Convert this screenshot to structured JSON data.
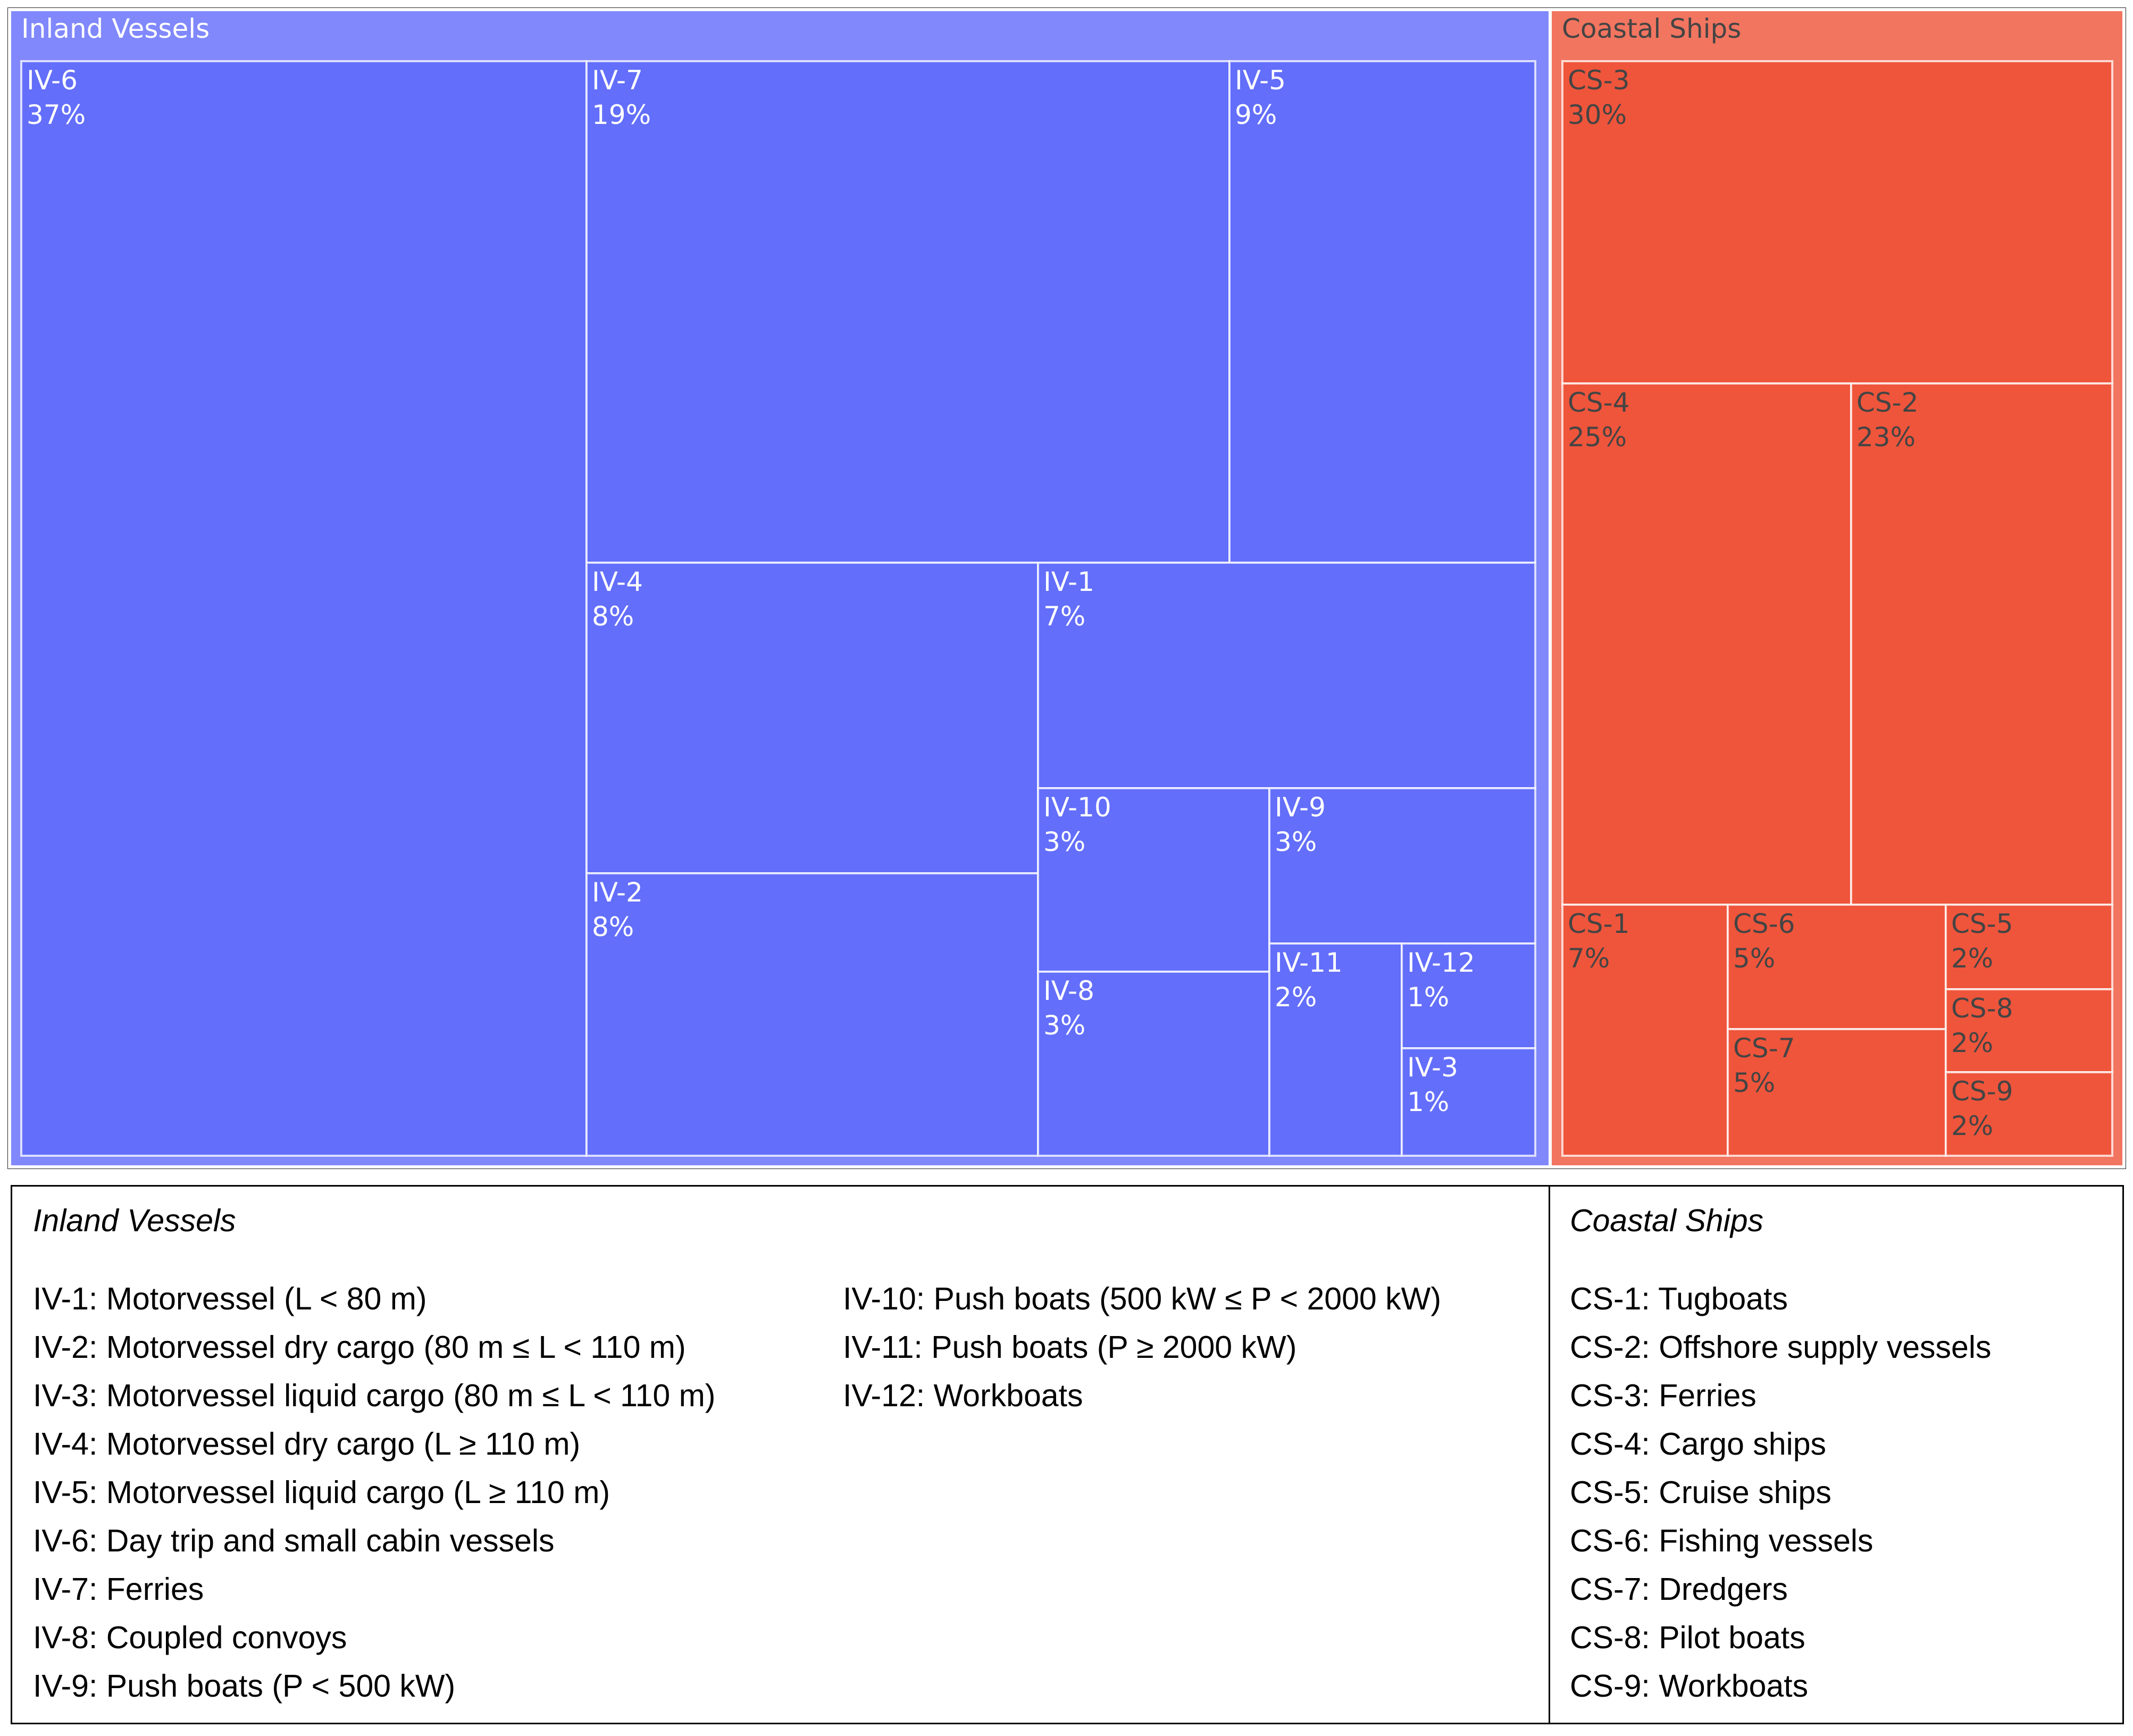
{
  "chart_data": {
    "type": "treemap",
    "groups": [
      {
        "name": "Inland Vessels",
        "color": "#636efa",
        "header_color": "#8088fc",
        "text_color": "#ffffff",
        "items": [
          {
            "id": "IV-6",
            "percent": "37%"
          },
          {
            "id": "IV-7",
            "percent": "19%"
          },
          {
            "id": "IV-5",
            "percent": "9%"
          },
          {
            "id": "IV-4",
            "percent": "8%"
          },
          {
            "id": "IV-2",
            "percent": "8%"
          },
          {
            "id": "IV-1",
            "percent": "7%"
          },
          {
            "id": "IV-10",
            "percent": "3%"
          },
          {
            "id": "IV-9",
            "percent": "3%"
          },
          {
            "id": "IV-8",
            "percent": "3%"
          },
          {
            "id": "IV-11",
            "percent": "2%"
          },
          {
            "id": "IV-12",
            "percent": "1%"
          },
          {
            "id": "IV-3",
            "percent": "1%"
          }
        ]
      },
      {
        "name": "Coastal Ships",
        "color": "#ef553b",
        "header_color": "#f27560",
        "text_color": "#444444",
        "items": [
          {
            "id": "CS-3",
            "percent": "30%"
          },
          {
            "id": "CS-4",
            "percent": "25%"
          },
          {
            "id": "CS-2",
            "percent": "23%"
          },
          {
            "id": "CS-1",
            "percent": "7%"
          },
          {
            "id": "CS-6",
            "percent": "5%"
          },
          {
            "id": "CS-7",
            "percent": "5%"
          },
          {
            "id": "CS-5",
            "percent": "2%"
          },
          {
            "id": "CS-8",
            "percent": "2%"
          },
          {
            "id": "CS-9",
            "percent": "2%"
          }
        ]
      }
    ]
  },
  "legend": {
    "inland": {
      "heading": "Inland Vessels",
      "col1": [
        "IV-1: Motorvessel (L < 80 m)",
        "IV-2: Motorvessel dry cargo (80 m ≤ L < 110 m)",
        "IV-3: Motorvessel liquid cargo (80 m ≤ L < 110 m)",
        "IV-4: Motorvessel dry cargo (L ≥ 110 m)",
        "IV-5: Motorvessel liquid cargo (L ≥ 110 m)",
        "IV-6: Day trip and small cabin vessels",
        "IV-7: Ferries",
        "IV-8: Coupled convoys",
        "IV-9: Push boats (P < 500 kW)"
      ],
      "col2": [
        "IV-10: Push boats (500 kW ≤ P < 2000 kW)",
        "IV-11: Push boats (P ≥ 2000 kW)",
        "IV-12: Workboats"
      ]
    },
    "coastal": {
      "heading": "Coastal Ships",
      "items": [
        "CS-1: Tugboats",
        "CS-2: Offshore supply vessels",
        "CS-3: Ferries",
        "CS-4: Cargo ships",
        "CS-5: Cruise ships",
        "CS-6: Fishing vessels",
        "CS-7: Dredgers",
        "CS-8: Pilot boats",
        "CS-9: Workboats"
      ]
    }
  }
}
